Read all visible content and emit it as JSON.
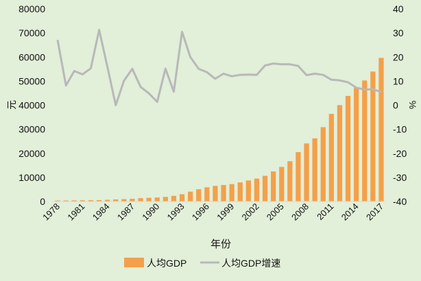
{
  "chart_data": {
    "type": "bar+line",
    "background": "#e2efd9",
    "xlabel": "年份",
    "ylabel_left": "元",
    "ylabel_right": "%",
    "ylim_left": [
      0,
      80000
    ],
    "yticks_left": [
      "0",
      "10000",
      "20000",
      "30000",
      "40000",
      "50000",
      "60000",
      "70000",
      "80000"
    ],
    "ylim_right": [
      -40,
      40
    ],
    "yticks_right": [
      "-40",
      "-30",
      "-20",
      "-10",
      "0",
      "10",
      "20",
      "30",
      "40"
    ],
    "x": [
      "1978",
      "1979",
      "1980",
      "1981",
      "1982",
      "1983",
      "1984",
      "1985",
      "1986",
      "1987",
      "1988",
      "1989",
      "1990",
      "1991",
      "1992",
      "1993",
      "1994",
      "1995",
      "1996",
      "1997",
      "1998",
      "1999",
      "2000",
      "2001",
      "2002",
      "2003",
      "2004",
      "2005",
      "2006",
      "2007",
      "2008",
      "2009",
      "2010",
      "2011",
      "2012",
      "2013",
      "2014",
      "2015",
      "2016",
      "2017"
    ],
    "xtick_labels": [
      "1978",
      "1981",
      "1984",
      "1987",
      "1990",
      "1993",
      "1996",
      "1999",
      "2002",
      "2005",
      "2008",
      "2011",
      "2014",
      "2017"
    ],
    "series": [
      {
        "name": "人均GDP",
        "type": "bar",
        "color": "#f4a04a",
        "values": [
          385,
          423,
          468,
          497,
          533,
          588,
          702,
          866,
          973,
          1123,
          1378,
          1536,
          1663,
          1912,
          2334,
          3027,
          4081,
          5091,
          5898,
          6481,
          6860,
          7229,
          7942,
          8717,
          9506,
          10666,
          12487,
          14368,
          16738,
          20505,
          24121,
          26222,
          30876,
          36403,
          40007,
          43852,
          47203,
          50251,
          53980,
          59660
        ]
      },
      {
        "name": "人均GDP增速",
        "type": "line",
        "color": "#b8b8b8",
        "values": [
          27.1,
          8.2,
          14.2,
          12.8,
          15.3,
          31.3,
          16.0,
          0.0,
          10.2,
          15.1,
          7.6,
          4.9,
          1.4,
          15.2,
          5.6,
          30.5,
          20.0,
          15.1,
          13.7,
          11.0,
          13.1,
          12.0,
          12.6,
          12.7,
          12.6,
          16.5,
          17.3,
          17.0,
          17.0,
          16.3,
          12.5,
          13.1,
          12.6,
          10.6,
          10.3,
          9.5,
          7.3,
          6.5,
          6.6,
          5.5
        ]
      }
    ],
    "grid": false,
    "legend_position": "bottom"
  }
}
